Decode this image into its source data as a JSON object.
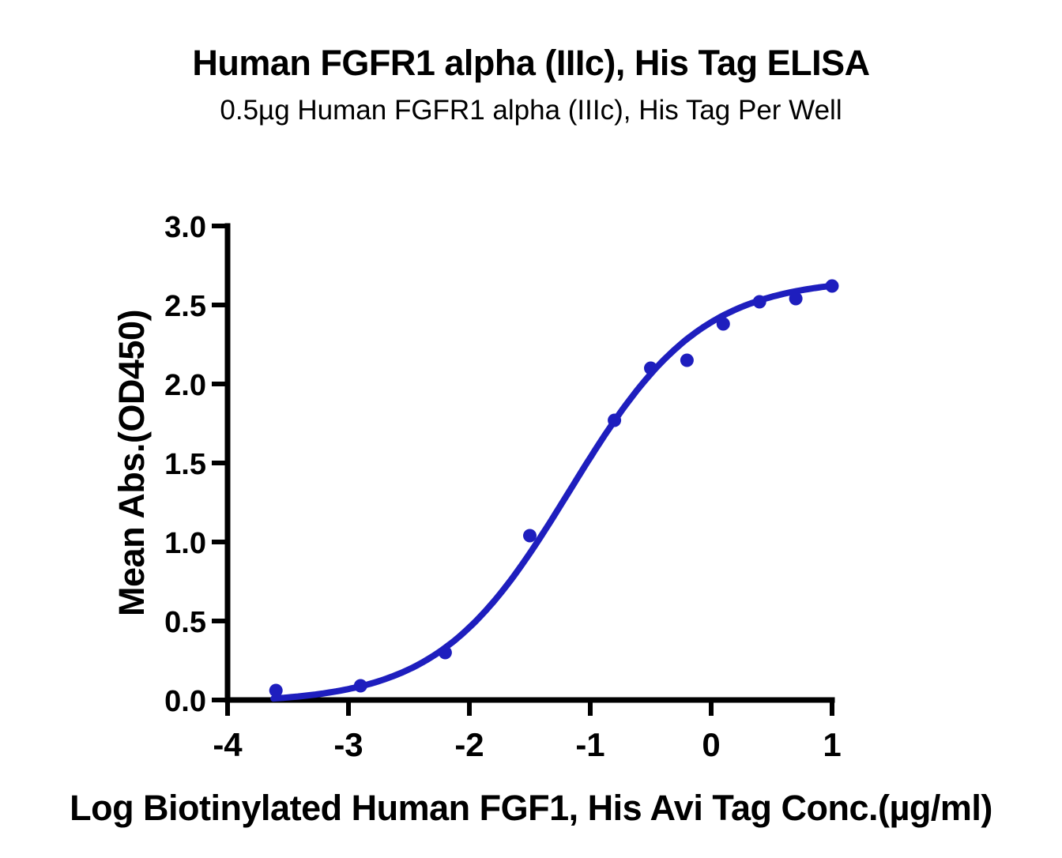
{
  "chart_data": {
    "type": "scatter",
    "title": "Human FGFR1 alpha (IIIc), His Tag ELISA",
    "subtitle": "0.5µg Human FGFR1 alpha (IIIc), His Tag Per Well",
    "xlabel": "Log Biotinylated Human FGF1, His Avi Tag Conc.(µg/ml)",
    "ylabel": "Mean Abs.(OD450)",
    "xlim": [
      -4,
      1
    ],
    "ylim": [
      0,
      3
    ],
    "x_ticks": [
      -4,
      -3,
      -2,
      -1,
      0,
      1
    ],
    "x_tick_labels": [
      "-4",
      "-3",
      "-2",
      "-1",
      "0",
      "1"
    ],
    "y_ticks": [
      0.0,
      0.5,
      1.0,
      1.5,
      2.0,
      2.5,
      3.0
    ],
    "y_tick_labels": [
      "0.0",
      "0.5",
      "1.0",
      "1.5",
      "2.0",
      "2.5",
      "3.0"
    ],
    "grid": false,
    "legend": "none",
    "series": [
      {
        "type": "scatter",
        "marker": "circle",
        "color": "#1E1EBE",
        "x": [
          -3.6,
          -2.9,
          -2.2,
          -1.5,
          -0.8,
          -0.5,
          -0.2,
          0.1,
          0.4,
          0.7,
          1.0
        ],
        "y": [
          0.06,
          0.09,
          0.3,
          1.04,
          1.77,
          2.1,
          2.15,
          2.38,
          2.52,
          2.54,
          2.62
        ]
      }
    ],
    "fit_curve": {
      "model": "4PL",
      "bottom": -0.02,
      "top": 2.67,
      "log_ec50": -1.17,
      "hill_slope": 0.8,
      "x_range": [
        -3.62,
        1.0
      ],
      "color": "#1E1EBE"
    },
    "colors": {
      "curve": "#1E1EBE",
      "points": "#1E1EBE",
      "axes": "#000000",
      "text": "#000000",
      "background": "#ffffff"
    }
  }
}
